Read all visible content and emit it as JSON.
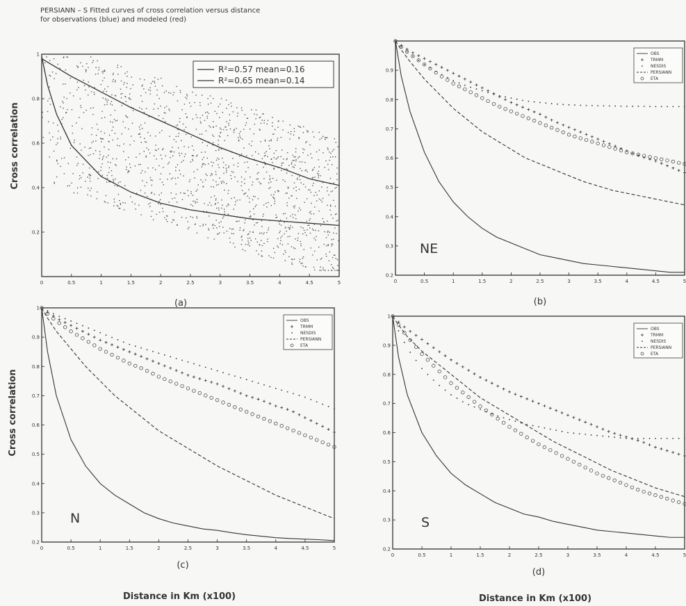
{
  "figure_title_line1": "PERSIANN – S Fitted curves of cross correlation versus distance",
  "figure_title_line2": "for observations (blue) and modeled (red)",
  "y_label": "Cross correlation",
  "x_label": "Distance in Km (x100)",
  "colors": {
    "ink": "#333333",
    "scatter": "#555555",
    "frame": "#222222"
  },
  "chart_data": [
    {
      "id": "a",
      "type": "scatter",
      "panel_label": "(a)",
      "xlim": [
        0,
        5
      ],
      "ylim": [
        0,
        1
      ],
      "x_ticks": [
        "0",
        "0.5",
        "1",
        "1.5",
        "2",
        "2.5",
        "3",
        "3.5",
        "4",
        "4.5",
        "5"
      ],
      "y_ticks": [
        "0.2",
        "0.4",
        "0.6",
        "0.8",
        "1"
      ],
      "legend": [
        "R²=0.57 mean=0.16",
        "R²=0.65 mean=0.14"
      ],
      "series": [
        {
          "style": "solid",
          "x": [
            0,
            0.25,
            0.5,
            1,
            1.5,
            2,
            2.5,
            3,
            3.5,
            4,
            4.5,
            5
          ],
          "y": [
            0.98,
            0.94,
            0.9,
            0.83,
            0.76,
            0.7,
            0.64,
            0.58,
            0.53,
            0.49,
            0.44,
            0.41
          ]
        },
        {
          "style": "solid",
          "x": [
            0,
            0.1,
            0.25,
            0.5,
            1,
            1.5,
            2,
            2.5,
            3,
            3.5,
            4,
            4.5,
            5
          ],
          "y": [
            0.99,
            0.86,
            0.73,
            0.59,
            0.45,
            0.38,
            0.33,
            0.3,
            0.28,
            0.26,
            0.25,
            0.24,
            0.23
          ]
        }
      ]
    },
    {
      "id": "b",
      "type": "line",
      "panel_label": "(b)",
      "region": "NE",
      "xlim": [
        0,
        5
      ],
      "ylim": [
        0.2,
        1
      ],
      "x_ticks": [
        "0",
        "0.5",
        "1",
        "1.5",
        "2",
        "2.5",
        "3",
        "3.5",
        "4",
        "4.5",
        "5"
      ],
      "y_ticks": [
        "0.2",
        "0.3",
        "0.4",
        "0.5",
        "0.6",
        "0.7",
        "0.8",
        "0.9"
      ],
      "legend_position": "top-right",
      "x": [
        0,
        0.1,
        0.25,
        0.5,
        0.75,
        1,
        1.25,
        1.5,
        1.75,
        2,
        2.25,
        2.5,
        2.75,
        3,
        3.25,
        3.5,
        3.75,
        4,
        4.25,
        4.5,
        4.75,
        5
      ],
      "series": [
        {
          "name": "OBS",
          "style": "solid",
          "y": [
            1.0,
            0.88,
            0.76,
            0.62,
            0.52,
            0.45,
            0.4,
            0.36,
            0.33,
            0.31,
            0.29,
            0.27,
            0.26,
            0.25,
            0.24,
            0.235,
            0.23,
            0.225,
            0.22,
            0.215,
            0.21,
            0.21
          ]
        },
        {
          "name": "TRMM",
          "style": "plus",
          "y": [
            1.0,
            0.985,
            0.965,
            0.94,
            0.915,
            0.89,
            0.865,
            0.84,
            0.815,
            0.79,
            0.77,
            0.75,
            0.725,
            0.705,
            0.685,
            0.665,
            0.645,
            0.625,
            0.605,
            0.59,
            0.57,
            0.55
          ]
        },
        {
          "name": "NESDIS",
          "style": "dot",
          "y": [
            1.0,
            0.98,
            0.955,
            0.92,
            0.89,
            0.865,
            0.845,
            0.83,
            0.815,
            0.805,
            0.795,
            0.79,
            0.785,
            0.782,
            0.78,
            0.779,
            0.778,
            0.777,
            0.777,
            0.776,
            0.776,
            0.776
          ]
        },
        {
          "name": "PERSIANN",
          "style": "dash",
          "y": [
            1.0,
            0.97,
            0.93,
            0.87,
            0.82,
            0.77,
            0.73,
            0.69,
            0.66,
            0.63,
            0.6,
            0.58,
            0.56,
            0.54,
            0.52,
            0.505,
            0.49,
            0.48,
            0.47,
            0.46,
            0.45,
            0.44
          ]
        },
        {
          "name": "ETA",
          "style": "circle",
          "y": [
            1.0,
            0.98,
            0.955,
            0.92,
            0.885,
            0.855,
            0.83,
            0.805,
            0.78,
            0.76,
            0.74,
            0.72,
            0.7,
            0.68,
            0.665,
            0.65,
            0.635,
            0.62,
            0.61,
            0.6,
            0.59,
            0.58
          ]
        }
      ]
    },
    {
      "id": "c",
      "type": "line",
      "panel_label": "(c)",
      "region": "N",
      "xlim": [
        0,
        5
      ],
      "ylim": [
        0.2,
        1
      ],
      "x_ticks": [
        "0",
        "0.5",
        "1",
        "1.5",
        "2",
        "2.5",
        "3",
        "3.5",
        "4",
        "4.5",
        "5"
      ],
      "y_ticks": [
        "0.2",
        "0.3",
        "0.4",
        "0.5",
        "0.6",
        "0.7",
        "0.8",
        "0.9",
        "1"
      ],
      "legend_position": "top-right",
      "x": [
        0,
        0.1,
        0.25,
        0.5,
        0.75,
        1,
        1.25,
        1.5,
        1.75,
        2,
        2.25,
        2.5,
        2.75,
        3,
        3.25,
        3.5,
        3.75,
        4,
        4.25,
        4.5,
        4.75,
        5
      ],
      "series": [
        {
          "name": "OBS",
          "style": "solid",
          "y": [
            1.0,
            0.85,
            0.7,
            0.55,
            0.46,
            0.4,
            0.36,
            0.33,
            0.3,
            0.28,
            0.265,
            0.255,
            0.245,
            0.24,
            0.232,
            0.225,
            0.22,
            0.215,
            0.212,
            0.21,
            0.208,
            0.205
          ]
        },
        {
          "name": "TRMM",
          "style": "plus",
          "y": [
            1.0,
            0.985,
            0.965,
            0.94,
            0.915,
            0.89,
            0.87,
            0.85,
            0.83,
            0.81,
            0.79,
            0.77,
            0.755,
            0.74,
            0.72,
            0.7,
            0.685,
            0.665,
            0.65,
            0.625,
            0.6,
            0.575
          ]
        },
        {
          "name": "NESDIS",
          "style": "dot",
          "y": [
            1.0,
            0.99,
            0.975,
            0.955,
            0.935,
            0.915,
            0.895,
            0.875,
            0.86,
            0.845,
            0.83,
            0.815,
            0.8,
            0.785,
            0.77,
            0.755,
            0.74,
            0.725,
            0.71,
            0.695,
            0.675,
            0.655
          ]
        },
        {
          "name": "PERSIANN",
          "style": "dash",
          "y": [
            1.0,
            0.965,
            0.92,
            0.86,
            0.8,
            0.75,
            0.7,
            0.66,
            0.62,
            0.58,
            0.55,
            0.52,
            0.49,
            0.46,
            0.435,
            0.41,
            0.385,
            0.36,
            0.34,
            0.32,
            0.3,
            0.28
          ]
        },
        {
          "name": "ETA",
          "style": "circle",
          "y": [
            1.0,
            0.98,
            0.955,
            0.92,
            0.89,
            0.86,
            0.835,
            0.81,
            0.79,
            0.765,
            0.745,
            0.725,
            0.705,
            0.685,
            0.665,
            0.645,
            0.625,
            0.605,
            0.585,
            0.565,
            0.545,
            0.525
          ]
        }
      ]
    },
    {
      "id": "d",
      "type": "line",
      "panel_label": "(d)",
      "region": "S",
      "xlim": [
        0,
        5
      ],
      "ylim": [
        0.2,
        1
      ],
      "x_ticks": [
        "0",
        "0.5",
        "1",
        "1.5",
        "2",
        "2.5",
        "3",
        "3.5",
        "4",
        "4.5",
        "5"
      ],
      "y_ticks": [
        "0.2",
        "0.3",
        "0.4",
        "0.5",
        "0.6",
        "0.7",
        "0.8",
        "0.9",
        "1"
      ],
      "legend_position": "top-right",
      "x": [
        0,
        0.1,
        0.25,
        0.5,
        0.75,
        1,
        1.25,
        1.5,
        1.75,
        2,
        2.25,
        2.5,
        2.75,
        3,
        3.25,
        3.5,
        3.75,
        4,
        4.25,
        4.5,
        4.75,
        5
      ],
      "series": [
        {
          "name": "OBS",
          "style": "solid",
          "y": [
            1.0,
            0.86,
            0.73,
            0.6,
            0.52,
            0.46,
            0.42,
            0.39,
            0.36,
            0.34,
            0.32,
            0.31,
            0.295,
            0.285,
            0.275,
            0.265,
            0.26,
            0.255,
            0.25,
            0.245,
            0.24,
            0.24
          ]
        },
        {
          "name": "TRMM",
          "style": "plus",
          "y": [
            1.0,
            0.98,
            0.955,
            0.92,
            0.885,
            0.85,
            0.82,
            0.79,
            0.765,
            0.74,
            0.72,
            0.7,
            0.68,
            0.66,
            0.64,
            0.62,
            0.6,
            0.585,
            0.57,
            0.55,
            0.535,
            0.52
          ]
        },
        {
          "name": "NESDIS",
          "style": "dot",
          "y": [
            1.0,
            0.95,
            0.89,
            0.82,
            0.77,
            0.73,
            0.7,
            0.68,
            0.66,
            0.645,
            0.63,
            0.62,
            0.61,
            0.6,
            0.595,
            0.59,
            0.585,
            0.58,
            0.58,
            0.58,
            0.58,
            0.58
          ]
        },
        {
          "name": "PERSIANN",
          "style": "dash",
          "y": [
            1.0,
            0.97,
            0.93,
            0.88,
            0.84,
            0.8,
            0.76,
            0.72,
            0.69,
            0.66,
            0.63,
            0.6,
            0.57,
            0.545,
            0.52,
            0.495,
            0.47,
            0.45,
            0.43,
            0.41,
            0.395,
            0.38
          ]
        },
        {
          "name": "ETA",
          "style": "circle",
          "y": [
            1.0,
            0.97,
            0.93,
            0.87,
            0.82,
            0.77,
            0.73,
            0.69,
            0.655,
            0.62,
            0.59,
            0.56,
            0.535,
            0.51,
            0.485,
            0.46,
            0.44,
            0.42,
            0.4,
            0.385,
            0.37,
            0.355
          ]
        }
      ]
    }
  ]
}
